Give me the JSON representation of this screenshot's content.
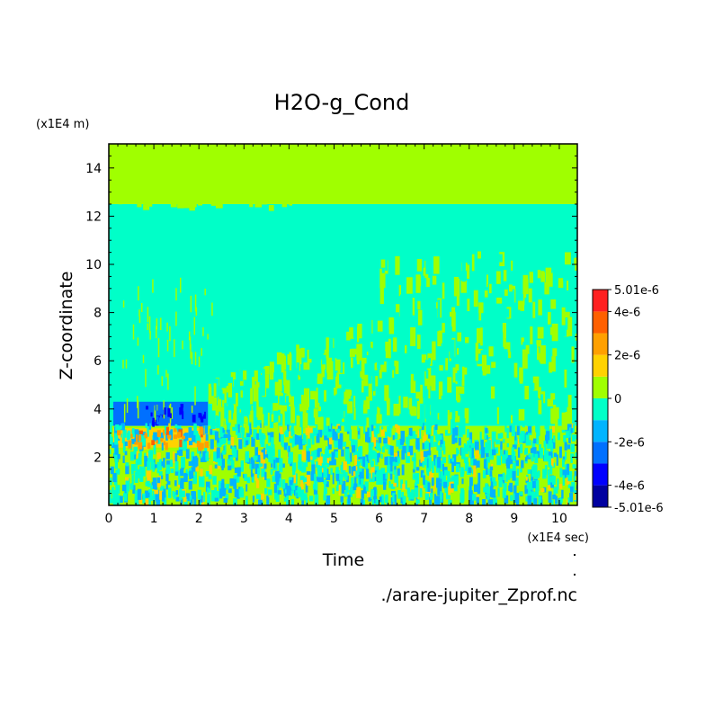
{
  "chart_data": {
    "type": "heatmap",
    "title": "H2O-g_Cond",
    "xlabel": "Time",
    "ylabel": "Z-coordinate",
    "x_unit": "(x1E4 sec)",
    "y_unit": "(x1E4 m)",
    "source_file": "./arare-jupiter_Zprof.nc",
    "xlim": [
      0,
      10.4
    ],
    "ylim": [
      0,
      15
    ],
    "x_ticks": [
      "0",
      "1",
      "2",
      "3",
      "4",
      "5",
      "6",
      "7",
      "8",
      "9",
      "10"
    ],
    "y_ticks": [
      "2",
      "4",
      "6",
      "8",
      "10",
      "12",
      "14"
    ],
    "colorbar": {
      "labels": [
        "5.01e-6",
        "4e-6",
        "2e-6",
        "0",
        "-2e-6",
        "-4e-6",
        "-5.01e-6"
      ],
      "levels": [
        -5.01e-06,
        -4e-06,
        -3e-06,
        -2e-06,
        -1e-06,
        0,
        1e-06,
        2e-06,
        3e-06,
        4e-06,
        5.01e-06
      ],
      "colors": [
        "#0000a0",
        "#0000ff",
        "#0070ff",
        "#00b4ff",
        "#00ffc8",
        "#a0ff00",
        "#ffd200",
        "#ffa000",
        "#ff6000",
        "#ff2020"
      ]
    },
    "regions": [
      {
        "x": [
          0,
          10.4
        ],
        "y": [
          0,
          3.3
        ],
        "value": "mixed",
        "level_index": 5
      },
      {
        "x": [
          0,
          10.4
        ],
        "y": [
          3.3,
          12.5
        ],
        "value": "0 to -1e-6",
        "level_index": 4
      },
      {
        "x": [
          0,
          10.4
        ],
        "y": [
          12.5,
          15
        ],
        "value": "0 to 1e-6",
        "level_index": 5
      },
      {
        "x": [
          0.1,
          2.2
        ],
        "y": [
          2.4,
          3.2
        ],
        "value": "1e-6 to 3e-6",
        "level_index": 6
      },
      {
        "x": [
          0.1,
          2.2
        ],
        "y": [
          3.3,
          4.3
        ],
        "value": "-1e-6 to -4e-6",
        "level_index": 2
      }
    ]
  }
}
